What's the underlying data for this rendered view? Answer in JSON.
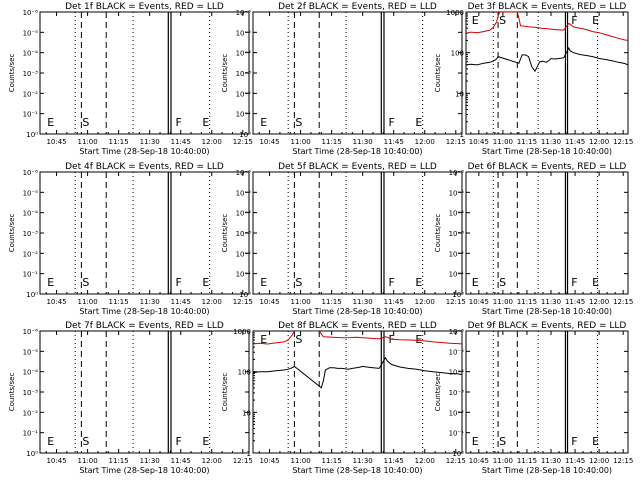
{
  "figure": {
    "xlabel": "Start Time (28-Sep-18 10:40:00)",
    "ylabel": "Counts/sec",
    "x_ticks": [
      {
        "t": 5,
        "label": "10:45"
      },
      {
        "t": 20,
        "label": "11:00"
      },
      {
        "t": 35,
        "label": "11:15"
      },
      {
        "t": 50,
        "label": "11:30"
      },
      {
        "t": 65,
        "label": "11:45"
      },
      {
        "t": 80,
        "label": "12:00"
      },
      {
        "t": 95,
        "label": "12:15"
      }
    ],
    "y_ticks_events_only": [
      {
        "v": 0,
        "label": "10⁰"
      },
      {
        "v": 1,
        "label": "10⁻¹"
      },
      {
        "v": 2,
        "label": "10⁻²"
      },
      {
        "v": 3,
        "label": "10⁻³"
      },
      {
        "v": 4,
        "label": "10⁻⁴"
      },
      {
        "v": 5,
        "label": "10⁻⁵"
      },
      {
        "v": 6,
        "label": "10⁻⁶"
      }
    ],
    "y_ticks_with_lld": [
      {
        "v": 0,
        "label": "1"
      },
      {
        "v": 1,
        "label": "10"
      },
      {
        "v": 2,
        "label": "100"
      },
      {
        "v": 3,
        "label": "1000"
      }
    ],
    "colors": {
      "events": "#000000",
      "lld": "#d40000",
      "axis": "#000000"
    }
  },
  "chart_data": [
    {
      "type": "line",
      "title": "Det 1f BLACK = Events, RED = LLD",
      "x_unit": "minutes after 10:40:00",
      "xlim": [
        -3,
        98
      ],
      "y_scale": "log",
      "ylim": [
        1,
        1e-06
      ],
      "markers": {
        "E": 0,
        "S": 17,
        "F": 62,
        "E2": 75
      },
      "dotted_lines": [
        14,
        42,
        79
      ],
      "dashed_lines": [
        17,
        29
      ],
      "solid_lines": [
        59,
        60.3
      ],
      "series": []
    },
    {
      "type": "line",
      "title": "Det 2f BLACK = Events, RED = LLD",
      "x_unit": "minutes after 10:40:00",
      "xlim": [
        -3,
        98
      ],
      "y_scale": "log",
      "ylim": [
        1,
        1e-06
      ],
      "markers": {
        "E": 0,
        "S": 17,
        "F": 62,
        "E2": 75
      },
      "dotted_lines": [
        14,
        42,
        79
      ],
      "dashed_lines": [
        17,
        29
      ],
      "solid_lines": [
        59,
        60.3
      ],
      "series": []
    },
    {
      "type": "line",
      "title": "Det 3f BLACK = Events, RED = LLD",
      "x_unit": "minutes after 10:40:00",
      "xlim": [
        -3,
        98
      ],
      "y_scale": "log",
      "ylim": [
        1,
        1000
      ],
      "markers": {
        "E": 0,
        "S": 17,
        "F": 62,
        "E2": 75
      },
      "dotted_lines": [
        14,
        42,
        79
      ],
      "dashed_lines": [
        17,
        29
      ],
      "solid_lines": [
        59,
        60.3
      ],
      "series": [
        {
          "name": "LLD",
          "t": [
            -3,
            0,
            4,
            8,
            12,
            14,
            16,
            17,
            18,
            29,
            30,
            31,
            36,
            40,
            44,
            47,
            50,
            53,
            56,
            58,
            61,
            62,
            64,
            68,
            72,
            76,
            80,
            84,
            88,
            92,
            96,
            98
          ],
          "v": [
            300,
            320,
            310,
            330,
            360,
            420,
            560,
            800,
            1000,
            1000,
            700,
            460,
            430,
            420,
            400,
            390,
            380,
            370,
            360,
            360,
            520,
            500,
            430,
            400,
            370,
            330,
            310,
            280,
            250,
            225,
            205,
            200
          ]
        },
        {
          "name": "Events",
          "t": [
            -3,
            0,
            4,
            8,
            12,
            14,
            16,
            17,
            30,
            31,
            32,
            34,
            36,
            38,
            40,
            43,
            45,
            47,
            49,
            50,
            52,
            55,
            58,
            61,
            62,
            64,
            68,
            72,
            76,
            80,
            84,
            88,
            92,
            96,
            98
          ],
          "v": [
            50,
            52,
            50,
            55,
            58,
            62,
            70,
            80,
            55,
            70,
            88,
            88,
            80,
            45,
            35,
            60,
            62,
            58,
            65,
            72,
            70,
            72,
            75,
            130,
            110,
            100,
            90,
            85,
            80,
            72,
            68,
            63,
            58,
            54,
            50
          ]
        }
      ]
    },
    {
      "type": "line",
      "title": "Det 4f BLACK = Events, RED = LLD",
      "x_unit": "minutes after 10:40:00",
      "xlim": [
        -3,
        98
      ],
      "y_scale": "log",
      "ylim": [
        1,
        1e-06
      ],
      "markers": {
        "E": 0,
        "S": 17,
        "F": 62,
        "E2": 75
      },
      "dotted_lines": [
        14,
        42,
        79
      ],
      "dashed_lines": [
        17,
        29
      ],
      "solid_lines": [
        59,
        60.3
      ],
      "series": []
    },
    {
      "type": "line",
      "title": "Det 5f BLACK = Events, RED = LLD",
      "x_unit": "minutes after 10:40:00",
      "xlim": [
        -3,
        98
      ],
      "y_scale": "log",
      "ylim": [
        1,
        1e-06
      ],
      "markers": {
        "E": 0,
        "S": 17,
        "F": 62,
        "E2": 75
      },
      "dotted_lines": [
        14,
        42,
        79
      ],
      "dashed_lines": [
        17,
        29
      ],
      "solid_lines": [
        59,
        60.3
      ],
      "series": []
    },
    {
      "type": "line",
      "title": "Det 6f BLACK = Events, RED = LLD",
      "x_unit": "minutes after 10:40:00",
      "xlim": [
        -3,
        98
      ],
      "y_scale": "log",
      "ylim": [
        1,
        1e-06
      ],
      "markers": {
        "E": 0,
        "S": 17,
        "F": 62,
        "E2": 75
      },
      "dotted_lines": [
        14,
        42,
        79
      ],
      "dashed_lines": [
        17,
        29
      ],
      "solid_lines": [
        59,
        60.3
      ],
      "series": []
    },
    {
      "type": "line",
      "title": "Det 7f BLACK = Events, RED = LLD",
      "x_unit": "minutes after 10:40:00",
      "xlim": [
        -3,
        98
      ],
      "y_scale": "log",
      "ylim": [
        1,
        1e-06
      ],
      "markers": {
        "E": 0,
        "S": 17,
        "F": 62,
        "E2": 75
      },
      "dotted_lines": [
        14,
        42,
        79
      ],
      "dashed_lines": [
        17,
        29
      ],
      "solid_lines": [
        59,
        60.3
      ],
      "series": []
    },
    {
      "type": "line",
      "title": "Det 8f BLACK = Events, RED = LLD",
      "x_unit": "minutes after 10:40:00",
      "xlim": [
        -3,
        98
      ],
      "y_scale": "log",
      "ylim": [
        1,
        1000
      ],
      "markers": {
        "E": 0,
        "S": 17,
        "F": 62,
        "E2": 75
      },
      "dotted_lines": [
        14,
        42,
        79
      ],
      "dashed_lines": [
        17,
        29
      ],
      "solid_lines": [
        59,
        60.3
      ],
      "series": [
        {
          "name": "LLD",
          "t": [
            -3,
            0,
            4,
            8,
            12,
            14,
            16,
            17,
            18,
            29,
            30,
            31,
            36,
            40,
            44,
            47,
            50,
            53,
            56,
            58,
            61,
            62,
            64,
            68,
            72,
            76,
            80,
            84,
            88,
            92,
            96,
            98
          ],
          "v": [
            480,
            500,
            480,
            510,
            540,
            600,
            800,
            1000,
            1000,
            1000,
            850,
            720,
            700,
            680,
            690,
            700,
            680,
            670,
            650,
            640,
            720,
            700,
            630,
            610,
            600,
            590,
            570,
            540,
            520,
            500,
            490,
            480
          ]
        },
        {
          "name": "Events",
          "t": [
            -3,
            0,
            4,
            8,
            12,
            14,
            16,
            17,
            30,
            31,
            32,
            34,
            36,
            38,
            40,
            43,
            45,
            47,
            49,
            50,
            52,
            55,
            58,
            61,
            62,
            64,
            68,
            72,
            76,
            80,
            84,
            88,
            92,
            96,
            98
          ],
          "v": [
            95,
            100,
            100,
            105,
            110,
            115,
            125,
            135,
            40,
            60,
            110,
            125,
            125,
            120,
            120,
            115,
            120,
            125,
            130,
            135,
            130,
            125,
            120,
            220,
            180,
            150,
            130,
            120,
            115,
            105,
            100,
            95,
            90,
            88,
            85
          ]
        }
      ]
    },
    {
      "type": "line",
      "title": "Det 9f BLACK = Events, RED = LLD",
      "x_unit": "minutes after 10:40:00",
      "xlim": [
        -3,
        98
      ],
      "y_scale": "log",
      "ylim": [
        1,
        1e-06
      ],
      "markers": {
        "E": 0,
        "S": 17,
        "F": 62,
        "E2": 75
      },
      "dotted_lines": [
        14,
        42,
        79
      ],
      "dashed_lines": [
        17,
        29
      ],
      "solid_lines": [
        59,
        60.3
      ],
      "series": []
    }
  ]
}
